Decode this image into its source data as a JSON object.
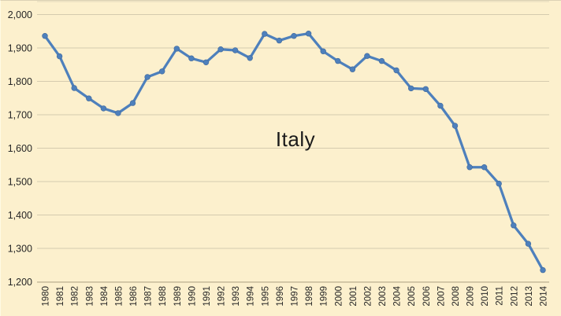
{
  "chart_data": {
    "type": "line",
    "title": "",
    "annotation": "Italy",
    "xlabel": "",
    "ylabel": "",
    "legend": "none",
    "grid": "horizontal",
    "x": [
      1980,
      1981,
      1982,
      1983,
      1984,
      1985,
      1986,
      1987,
      1988,
      1989,
      1990,
      1991,
      1992,
      1993,
      1994,
      1995,
      1996,
      1997,
      1998,
      1999,
      2000,
      2001,
      2002,
      2003,
      2004,
      2005,
      2006,
      2007,
      2008,
      2009,
      2010,
      2011,
      2012,
      2013,
      2014
    ],
    "series": [
      {
        "name": "Italy",
        "values": [
          1936,
          1875,
          1780,
          1749,
          1719,
          1705,
          1735,
          1813,
          1830,
          1898,
          1869,
          1857,
          1896,
          1893,
          1870,
          1942,
          1922,
          1936,
          1943,
          1890,
          1861,
          1836,
          1876,
          1861,
          1833,
          1779,
          1777,
          1727,
          1667,
          1543,
          1543,
          1494,
          1369,
          1314,
          1235
        ]
      }
    ],
    "ylim": [
      1200,
      2000
    ],
    "y_ticks": [
      2000,
      1900,
      1800,
      1700,
      1600,
      1500,
      1400,
      1300,
      1200
    ],
    "y_tick_labels": [
      "2,000",
      "1,900",
      "1,800",
      "1,700",
      "1,600",
      "1,500",
      "1,400",
      "1,300",
      "1,200"
    ],
    "colors": {
      "background": "#FCF0CD",
      "line": "#4E80BC",
      "marker": "#4E80BC",
      "marker_edge": "#41699B",
      "gridline": "#D5CBAE",
      "plot_border": "#E2D8BB",
      "axis_line": "#C6BA99",
      "tick_text": "#262626",
      "annotation_text": "#1A1A1A"
    }
  }
}
